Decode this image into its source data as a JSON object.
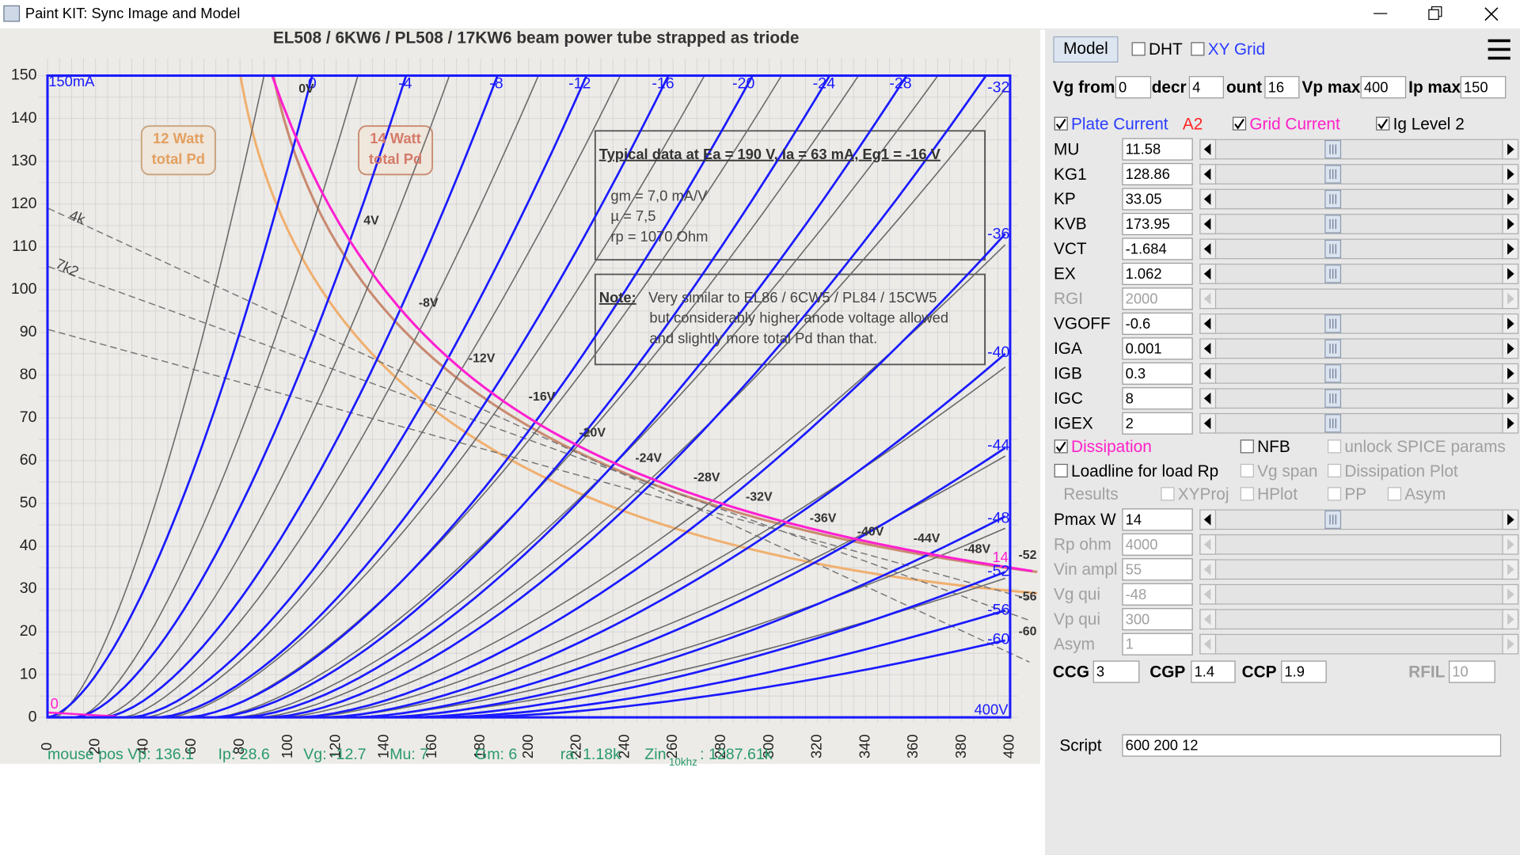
{
  "window": {
    "title": "Paint KIT: Sync Image and Model"
  },
  "plot": {
    "title": "EL508 / 6KW6 / PL508 / 17KW6 beam power tube strapped as triode",
    "y_ticks": [
      0,
      10,
      20,
      30,
      40,
      50,
      60,
      70,
      80,
      90,
      100,
      110,
      120,
      130,
      140,
      150
    ],
    "x_ticks": [
      0,
      20,
      40,
      60,
      80,
      100,
      120,
      140,
      160,
      180,
      200,
      220,
      240,
      260,
      280,
      300,
      320,
      340,
      360,
      380,
      400
    ],
    "ip_max_label": "150mA",
    "origin_label": "0",
    "vp_max_label": "400V",
    "grid_top_labels": [
      "0",
      "-4",
      "-8",
      "-12",
      "-16",
      "-20",
      "-24",
      "-28",
      "-32"
    ],
    "grid_right_labels": [
      "-36",
      "-40",
      "-44",
      "-48",
      "-52",
      "-56",
      "-60"
    ],
    "scan_right_labels": [
      "-52",
      "-56",
      "-60"
    ],
    "pmax_label": "14",
    "scan_curve_labels": [
      "0V",
      "4V",
      "-8V",
      "-12V",
      "-16V",
      "-20V",
      "-24V",
      "-28V",
      "-32V",
      "-36V",
      "-40V",
      "-44V",
      "-48V"
    ],
    "loadline_labels": [
      "4k",
      "7k2"
    ],
    "watt_boxes": [
      {
        "line1": "12 Watt",
        "line2": "total Pd"
      },
      {
        "line1": "14 Watt",
        "line2": "total Pd"
      }
    ],
    "typical_box": {
      "heading": "Typical data at Ea = 190 V, Ia = 63 mA, Eg1 = -16 V",
      "lines": [
        "gm = 7,0 mA/V",
        "µ = 7,5",
        "rp = 1070 Ohm"
      ]
    },
    "note_box": {
      "label": "Note:",
      "lines": [
        "Very similar to EL86 / 6CW5 / PL84 / 15CW5",
        "but considerably higher anode voltage allowed",
        "and slightly more total Pd than that."
      ]
    }
  },
  "status": [
    "mouse pos Vp: 136.1",
    "Ip: 28.6",
    "Vg: -12.7",
    "Mu: 7",
    "Gm: 6",
    "ra: 1.18k",
    "Zin",
    "10khz",
    ": 1287.61k"
  ],
  "panel": {
    "model_button": "Model",
    "top_checks": [
      {
        "label": "DHT",
        "checked": false
      },
      {
        "label": "XY Grid",
        "checked": false,
        "color": "#2a3cff"
      }
    ],
    "range_fields": [
      {
        "label": "Vg from",
        "value": "0"
      },
      {
        "label": "decr",
        "value": "4"
      },
      {
        "label": "ount",
        "value": "16"
      },
      {
        "label": "Vp max",
        "value": "400"
      },
      {
        "label": "Ip max",
        "value": "150"
      }
    ],
    "current_row": [
      {
        "label": "Plate Current",
        "checked": true,
        "color": "#2a3cff"
      },
      {
        "label": "A2",
        "color": "#ff2020"
      },
      {
        "label": "Grid Current",
        "checked": true,
        "color": "#ff20c8"
      },
      {
        "label": "Ig Level 2",
        "checked": true
      }
    ],
    "params": [
      {
        "label": "MU",
        "value": "11.58",
        "enabled": true
      },
      {
        "label": "KG1",
        "value": "128.86",
        "enabled": true
      },
      {
        "label": "KP",
        "value": "33.05",
        "enabled": true
      },
      {
        "label": "KVB",
        "value": "173.95",
        "enabled": true
      },
      {
        "label": "VCT",
        "value": "-1.684",
        "enabled": true
      },
      {
        "label": "EX",
        "value": "1.062",
        "enabled": true
      },
      {
        "label": "RGI",
        "value": "2000",
        "enabled": false
      },
      {
        "label": "VGOFF",
        "value": "-0.6",
        "enabled": true
      },
      {
        "label": "IGA",
        "value": "0.001",
        "enabled": true
      },
      {
        "label": "IGB",
        "value": "0.3",
        "enabled": true
      },
      {
        "label": "IGC",
        "value": "8",
        "enabled": true
      },
      {
        "label": "IGEX",
        "value": "2",
        "enabled": true
      }
    ],
    "option_rows": [
      [
        {
          "label": "Dissipation",
          "checked": true,
          "color": "#ff20c8"
        },
        {
          "label": "NFB",
          "checked": false
        },
        {
          "label": "unlock SPICE params",
          "checked": false,
          "enabled": false
        }
      ],
      [
        {
          "label": "Loadline for load Rp",
          "checked": false
        },
        {
          "label": "Vg span",
          "checked": false,
          "enabled": false
        },
        {
          "label": "Dissipation Plot",
          "checked": false,
          "enabled": false
        }
      ],
      [
        {
          "label": "Results",
          "enabled": false
        },
        {
          "label": "XYProj",
          "checked": false,
          "enabled": false
        },
        {
          "label": "HPlot",
          "checked": false,
          "enabled": false
        },
        {
          "label": "PP",
          "checked": false,
          "enabled": false
        },
        {
          "label": "Asym",
          "checked": false,
          "enabled": false
        }
      ]
    ],
    "load_params": [
      {
        "label": "Pmax W",
        "value": "14",
        "enabled": true
      },
      {
        "label": "Rp ohm",
        "value": "4000",
        "enabled": false
      },
      {
        "label": "Vin ampl",
        "value": "55",
        "enabled": false
      },
      {
        "label": "Vg qui",
        "value": "-48",
        "enabled": false
      },
      {
        "label": "Vp qui",
        "value": "300",
        "enabled": false
      },
      {
        "label": "Asym",
        "value": "1",
        "enabled": false
      }
    ],
    "caps": [
      {
        "label": "CCG",
        "value": "3",
        "enabled": true
      },
      {
        "label": "CGP",
        "value": "1.4",
        "enabled": true
      },
      {
        "label": "CCP",
        "value": "1.9",
        "enabled": true
      },
      {
        "label": "RFIL",
        "value": "10",
        "enabled": false
      }
    ],
    "script": {
      "label": "Script",
      "value": "600 200 12"
    }
  }
}
